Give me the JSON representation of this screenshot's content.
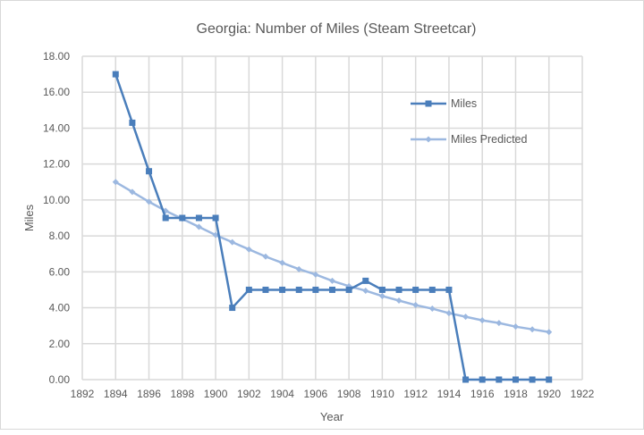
{
  "chart_data": {
    "type": "line",
    "title": "Georgia: Number of Miles (Steam Streetcar)",
    "xlabel": "Year",
    "ylabel": "Miles",
    "xlim": [
      1892,
      1922
    ],
    "ylim": [
      0,
      18
    ],
    "xticks": [
      1892,
      1894,
      1896,
      1898,
      1900,
      1902,
      1904,
      1906,
      1908,
      1910,
      1912,
      1914,
      1916,
      1918,
      1920,
      1922
    ],
    "yticks": [
      "0.00",
      "2.00",
      "4.00",
      "6.00",
      "8.00",
      "10.00",
      "12.00",
      "14.00",
      "16.00",
      "18.00"
    ],
    "grid": true,
    "legend": "right",
    "x": [
      1894,
      1895,
      1896,
      1897,
      1898,
      1899,
      1900,
      1901,
      1902,
      1903,
      1904,
      1905,
      1906,
      1907,
      1908,
      1909,
      1910,
      1911,
      1912,
      1913,
      1914,
      1915,
      1916,
      1917,
      1918,
      1919,
      1920
    ],
    "series": [
      {
        "name": "Miles",
        "color": "#4a7ebb",
        "marker": "square",
        "values": [
          17,
          14.3,
          11.6,
          9,
          9,
          9,
          9,
          4,
          5,
          5,
          5,
          5,
          5,
          5,
          5,
          5.5,
          5,
          5,
          5,
          5,
          5,
          0,
          0,
          0,
          0,
          0,
          0
        ]
      },
      {
        "name": "Miles Predicted",
        "color": "#9cb8e0",
        "marker": "diamond",
        "values": [
          11.0,
          10.45,
          9.9,
          9.4,
          8.95,
          8.5,
          8.05,
          7.65,
          7.25,
          6.85,
          6.5,
          6.15,
          5.85,
          5.5,
          5.2,
          4.95,
          4.65,
          4.4,
          4.15,
          3.95,
          3.7,
          3.5,
          3.3,
          3.15,
          2.95,
          2.8,
          2.65
        ]
      }
    ]
  }
}
